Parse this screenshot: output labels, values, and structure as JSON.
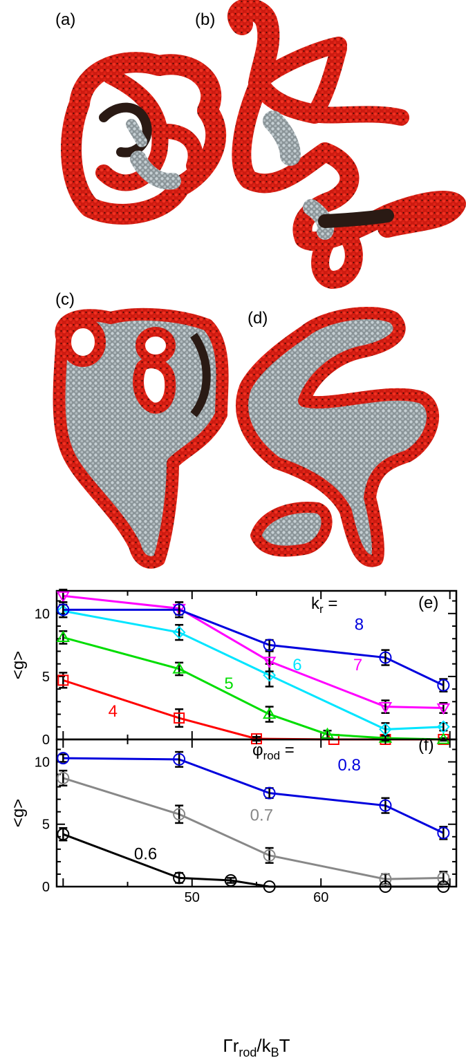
{
  "panel_labels": {
    "a": "(a)",
    "b": "(b)",
    "c": "(c)",
    "d": "(d)"
  },
  "colors": {
    "red": "#e8231a",
    "gray_bead": "#b8c2c6",
    "dark": "#2a1a14"
  },
  "chart_data": [
    {
      "type": "line",
      "panel": "(e)",
      "ylabel": "<g>",
      "xlim": [
        39.5,
        70.5
      ],
      "ylim": [
        0,
        11.8
      ],
      "yticks": [
        0,
        5,
        10
      ],
      "legend_title": {
        "prefix": "k",
        "sub": "r",
        "eq": " = "
      },
      "series": [
        {
          "name": "4",
          "color": "#ff0000",
          "marker": "square",
          "x": [
            40,
            49,
            55,
            61,
            65,
            69.5
          ],
          "y": [
            4.7,
            1.7,
            0.05,
            0.0,
            0.0,
            0.0
          ],
          "err": [
            0.6,
            0.7,
            0.15,
            0,
            0,
            0
          ]
        },
        {
          "name": "5",
          "color": "#00dd00",
          "marker": "triangle-up",
          "x": [
            40,
            49,
            56,
            60.5,
            65,
            69.5
          ],
          "y": [
            8.1,
            5.6,
            2.0,
            0.4,
            0.1,
            0.0
          ],
          "err": [
            0.5,
            0.5,
            0.6,
            0.3,
            0.2,
            0.1
          ]
        },
        {
          "name": "6",
          "color": "#00e5ff",
          "marker": "diamond",
          "x": [
            40,
            49,
            56,
            65,
            69.5
          ],
          "y": [
            10.2,
            8.5,
            5.1,
            0.8,
            1.0
          ],
          "err": [
            0.5,
            0.6,
            0.9,
            0.5,
            0.3
          ]
        },
        {
          "name": "7",
          "color": "#ff00ff",
          "marker": "triangle-down",
          "x": [
            40,
            49,
            56,
            65,
            69.5
          ],
          "y": [
            11.4,
            10.4,
            6.2,
            2.6,
            2.5
          ],
          "err": [
            0.5,
            0.5,
            0.8,
            0.5,
            0.4
          ]
        },
        {
          "name": "8",
          "color": "#0000dd",
          "marker": "circle",
          "x": [
            40,
            49,
            56,
            65,
            69.5
          ],
          "y": [
            10.3,
            10.3,
            7.5,
            6.5,
            4.3
          ],
          "err": [
            0.6,
            0.6,
            0.4,
            0.6,
            0.5
          ]
        }
      ],
      "labels": [
        {
          "text": "4",
          "series": 0,
          "x": 43.5,
          "y": 1.8
        },
        {
          "text": "5",
          "series": 1,
          "x": 52.5,
          "y": 4.0
        },
        {
          "text": "6",
          "series": 2,
          "x": 57.8,
          "y": 5.5
        },
        {
          "text": "7",
          "series": 3,
          "x": 62.5,
          "y": 5.5
        },
        {
          "text": "8",
          "series": 4,
          "x": 62.6,
          "y": 8.7
        }
      ]
    },
    {
      "type": "line",
      "panel": "(f)",
      "ylabel": "<g>",
      "xlabel": {
        "pre": "Γr",
        "sub": "rod",
        "mid": "/k",
        "sub2": "B",
        "post": "T"
      },
      "xlim": [
        39.5,
        70.5
      ],
      "ylim": [
        0,
        11.8
      ],
      "yticks": [
        0,
        5,
        10
      ],
      "xticks": [
        50,
        60
      ],
      "legend_title": {
        "prefix": "φ",
        "sub": "rod",
        "eq": " = "
      },
      "series": [
        {
          "name": "0.8",
          "color": "#0000dd",
          "marker": "circle",
          "x": [
            40,
            49,
            56,
            65,
            69.5
          ],
          "y": [
            10.3,
            10.2,
            7.5,
            6.5,
            4.3
          ],
          "err": [
            0.3,
            0.6,
            0.4,
            0.6,
            0.5
          ]
        },
        {
          "name": "0.7",
          "color": "#888888",
          "marker": "circle",
          "x": [
            40,
            49,
            56,
            65,
            69.5
          ],
          "y": [
            8.7,
            5.8,
            2.5,
            0.6,
            0.7
          ],
          "err": [
            0.6,
            0.7,
            0.6,
            0.4,
            0.5
          ]
        },
        {
          "name": "0.6",
          "color": "#000000",
          "marker": "circle",
          "x": [
            40,
            49,
            53,
            56,
            65,
            69.5
          ],
          "y": [
            4.2,
            0.7,
            0.5,
            0.0,
            0.0,
            0.0
          ],
          "err": [
            0.5,
            0.4,
            0.2,
            0,
            0,
            0
          ]
        }
      ],
      "labels": [
        {
          "text": "0.8",
          "series": 0,
          "x": 61.3,
          "y": 9.3
        },
        {
          "text": "0.7",
          "series": 1,
          "x": 54.5,
          "y": 5.3
        },
        {
          "text": "0.6",
          "series": 2,
          "x": 45.5,
          "y": 2.2
        }
      ]
    }
  ]
}
